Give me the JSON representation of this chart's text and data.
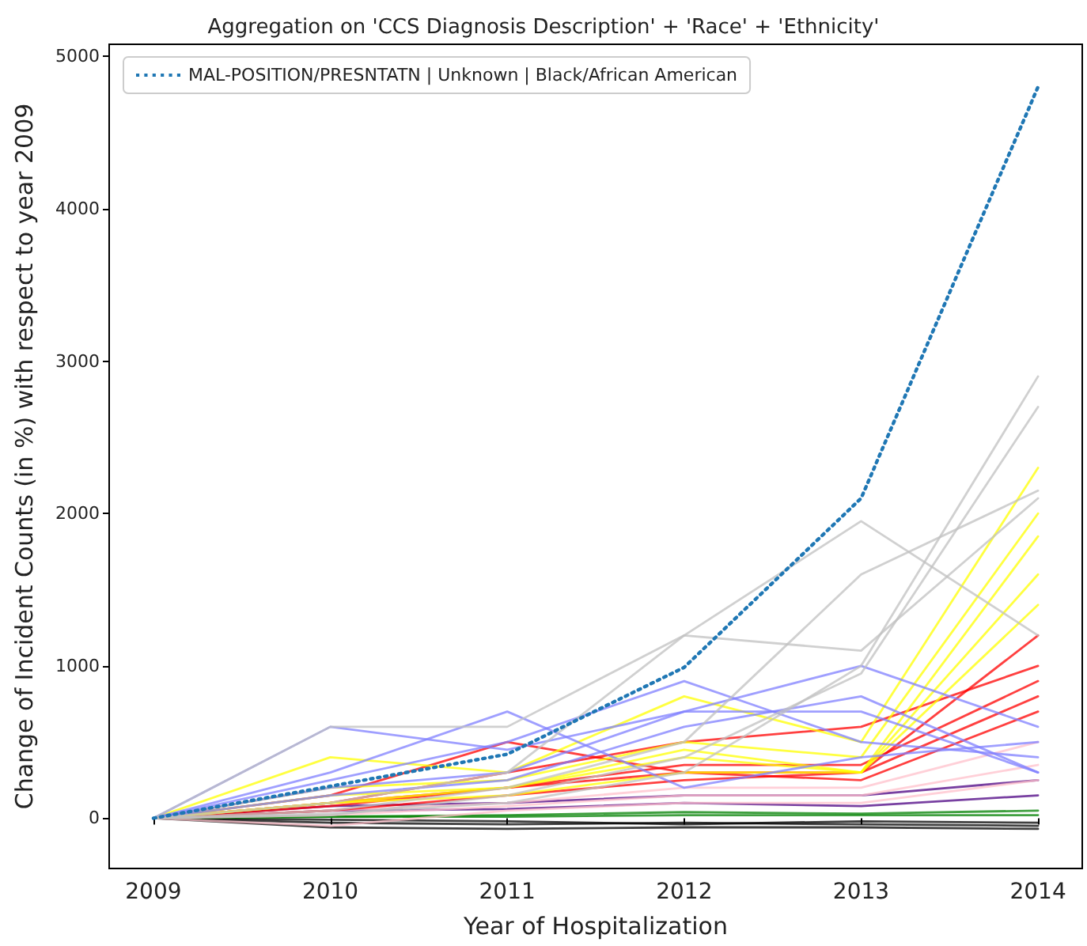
{
  "chart_data": {
    "type": "line",
    "title": "Aggregation on 'CCS Diagnosis Description' + 'Race' + 'Ethnicity'",
    "xlabel": "Year of Hospitalization",
    "ylabel": "Change of Incident Counts (in %) with respect to year 2009",
    "x": [
      2009,
      2010,
      2011,
      2012,
      2013,
      2014
    ],
    "xlim": [
      2008.75,
      2014.25
    ],
    "xticks": [
      2009,
      2010,
      2011,
      2012,
      2013,
      2014
    ],
    "ylim": [
      -330,
      5080
    ],
    "yticks": [
      0,
      1000,
      2000,
      3000,
      4000,
      5000
    ],
    "grid": false,
    "legend": "top left",
    "marker": "none",
    "line_style": "solid",
    "series": [
      {
        "color": "#000000",
        "values": [
          0,
          -60,
          -70,
          -60,
          -60,
          -70
        ]
      },
      {
        "color": "#000000",
        "values": [
          0,
          -30,
          -40,
          -30,
          -40,
          -50
        ]
      },
      {
        "color": "#000000",
        "values": [
          0,
          -10,
          -20,
          -40,
          -20,
          -30
        ]
      },
      {
        "color": "#008000",
        "values": [
          0,
          10,
          20,
          40,
          30,
          50
        ]
      },
      {
        "color": "#008000",
        "values": [
          0,
          10,
          10,
          20,
          20,
          20
        ]
      },
      {
        "color": "#4b0082",
        "values": [
          0,
          80,
          100,
          150,
          150,
          250
        ]
      },
      {
        "color": "#4b0082",
        "values": [
          0,
          50,
          60,
          100,
          80,
          150
        ]
      },
      {
        "color": "#ffc0cb",
        "values": [
          0,
          50,
          100,
          200,
          200,
          500
        ]
      },
      {
        "color": "#ffc0cb",
        "values": [
          0,
          20,
          80,
          150,
          150,
          350
        ]
      },
      {
        "color": "#ffc0cb",
        "values": [
          0,
          -50,
          50,
          100,
          100,
          250
        ]
      },
      {
        "color": "#ff0000",
        "values": [
          0,
          150,
          500,
          300,
          300,
          1200
        ]
      },
      {
        "color": "#ff0000",
        "values": [
          0,
          100,
          300,
          500,
          600,
          1000
        ]
      },
      {
        "color": "#ff0000",
        "values": [
          0,
          100,
          200,
          350,
          350,
          900
        ]
      },
      {
        "color": "#ff0000",
        "values": [
          0,
          50,
          150,
          250,
          300,
          800
        ]
      },
      {
        "color": "#ff0000",
        "values": [
          0,
          80,
          200,
          300,
          250,
          700
        ]
      },
      {
        "color": "#ffff00",
        "values": [
          0,
          400,
          300,
          800,
          500,
          2300
        ]
      },
      {
        "color": "#ffff00",
        "values": [
          0,
          200,
          250,
          500,
          400,
          2000
        ]
      },
      {
        "color": "#ffff00",
        "values": [
          0,
          100,
          200,
          400,
          300,
          1850
        ]
      },
      {
        "color": "#ffff00",
        "values": [
          0,
          150,
          200,
          450,
          300,
          1600
        ]
      },
      {
        "color": "#ffff00",
        "values": [
          0,
          100,
          150,
          300,
          300,
          1400
        ]
      },
      {
        "color": "#7f7fff",
        "values": [
          0,
          600,
          450,
          700,
          700,
          300
        ]
      },
      {
        "color": "#7f7fff",
        "values": [
          0,
          300,
          700,
          200,
          400,
          500
        ]
      },
      {
        "color": "#7f7fff",
        "values": [
          0,
          250,
          500,
          900,
          500,
          400
        ]
      },
      {
        "color": "#7f7fff",
        "values": [
          0,
          200,
          300,
          700,
          1000,
          600
        ]
      },
      {
        "color": "#7f7fff",
        "values": [
          0,
          150,
          250,
          600,
          800,
          300
        ]
      },
      {
        "color": "#c0c0c0",
        "values": [
          0,
          600,
          600,
          1200,
          1100,
          2100
        ]
      },
      {
        "color": "#c0c0c0",
        "values": [
          0,
          100,
          300,
          1200,
          1950,
          1200
        ]
      },
      {
        "color": "#c0c0c0",
        "values": [
          0,
          50,
          200,
          500,
          1600,
          2150
        ]
      },
      {
        "color": "#c0c0c0",
        "values": [
          0,
          30,
          100,
          300,
          1000,
          2900
        ]
      },
      {
        "color": "#c0c0c0",
        "values": [
          0,
          20,
          150,
          400,
          950,
          2700
        ]
      },
      {
        "name": "MAL-POSITION/PRESNTATN | Unknown | Black/African American",
        "color": "#1f77b4",
        "line_style": "dotted",
        "values": [
          0,
          210,
          420,
          990,
          2100,
          4800
        ]
      }
    ]
  }
}
